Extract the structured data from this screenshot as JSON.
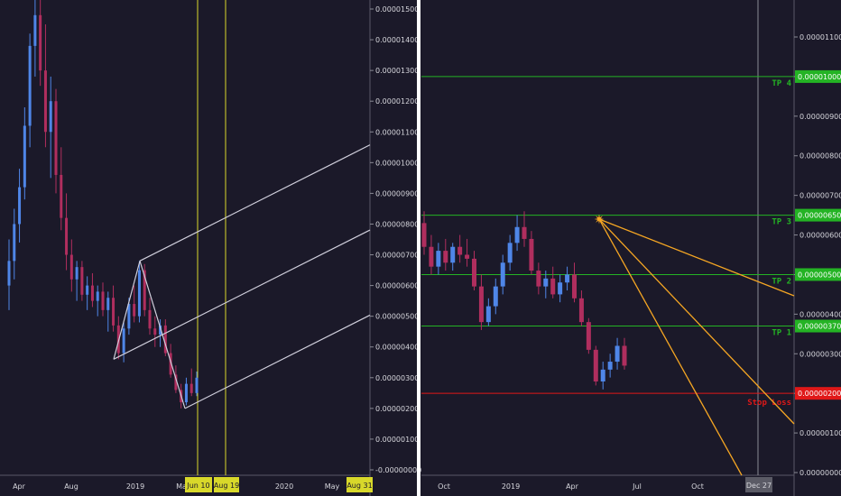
{
  "chart_data": [
    {
      "type": "candlestick",
      "panel": "left",
      "x_ticks": [
        "Apr",
        "Aug",
        "2019",
        "Ma",
        "2020",
        "May"
      ],
      "x_highlight_labels": [
        "Jun 10",
        "Aug 19",
        "Aug 31"
      ],
      "y_ticks": [
        "0.00001500",
        "0.00001400",
        "0.00001300",
        "0.00001200",
        "0.00001100",
        "0.00001000",
        "0.00000900",
        "0.00000800",
        "0.00000700",
        "0.00000600",
        "0.00000500",
        "0.00000400",
        "0.00000300",
        "0.00000200",
        "0.00000100",
        "-0.00000000"
      ],
      "ylim": [
        -1e-07,
        1.56e-05
      ],
      "candles": [
        [
          6e-06,
          7.5e-06,
          5.2e-06,
          6.8e-06
        ],
        [
          6.8e-06,
          8.5e-06,
          6.2e-06,
          8e-06
        ],
        [
          8e-06,
          9.8e-06,
          7.4e-06,
          9.2e-06
        ],
        [
          9.2e-06,
          1.18e-05,
          8.8e-06,
          1.12e-05
        ],
        [
          1.12e-05,
          1.42e-05,
          1.05e-05,
          1.38e-05
        ],
        [
          1.38e-05,
          1.56e-05,
          1.28e-05,
          1.48e-05
        ],
        [
          1.48e-05,
          1.56e-05,
          1.25e-05,
          1.3e-05
        ],
        [
          1.3e-05,
          1.45e-05,
          1.05e-05,
          1.1e-05
        ],
        [
          1.1e-05,
          1.28e-05,
          9.5e-06,
          1.2e-05
        ],
        [
          1.2e-05,
          1.24e-05,
          9e-06,
          9.6e-06
        ],
        [
          9.6e-06,
          1.05e-05,
          7.8e-06,
          8.2e-06
        ],
        [
          8.2e-06,
          9e-06,
          6.5e-06,
          7e-06
        ],
        [
          7e-06,
          7.5e-06,
          5.8e-06,
          6.2e-06
        ],
        [
          6.2e-06,
          6.8e-06,
          5.5e-06,
          6.6e-06
        ],
        [
          6.6e-06,
          6.8e-06,
          5.5e-06,
          5.7e-06
        ],
        [
          5.7e-06,
          6.3e-06,
          5.2e-06,
          6e-06
        ],
        [
          6e-06,
          6.4e-06,
          5.3e-06,
          5.5e-06
        ],
        [
          5.5e-06,
          6e-06,
          5e-06,
          5.8e-06
        ],
        [
          5.8e-06,
          6.1e-06,
          5e-06,
          5.2e-06
        ],
        [
          5.2e-06,
          5.8e-06,
          4.5e-06,
          5.6e-06
        ],
        [
          5.6e-06,
          6e-06,
          4.5e-06,
          4.7e-06
        ],
        [
          4.7e-06,
          5e-06,
          3.6e-06,
          3.8e-06
        ],
        [
          3.8e-06,
          4.8e-06,
          3.5e-06,
          4.6e-06
        ],
        [
          4.6e-06,
          5.6e-06,
          4.4e-06,
          5.4e-06
        ],
        [
          5.4e-06,
          6e-06,
          4.8e-06,
          5e-06
        ],
        [
          5e-06,
          6.8e-06,
          4.8e-06,
          6.5e-06
        ],
        [
          6.5e-06,
          6.7e-06,
          5e-06,
          5.2e-06
        ],
        [
          5.2e-06,
          5.6e-06,
          4.4e-06,
          4.6e-06
        ],
        [
          4.6e-06,
          5e-06,
          4e-06,
          4.4e-06
        ],
        [
          4.4e-06,
          4.9e-06,
          4e-06,
          4.7e-06
        ],
        [
          4.7e-06,
          4.9e-06,
          3.7e-06,
          3.8e-06
        ],
        [
          3.8e-06,
          4.1e-06,
          3e-06,
          3.1e-06
        ],
        [
          3.1e-06,
          3.4e-06,
          2.5e-06,
          2.6e-06
        ],
        [
          2.6e-06,
          2.8e-06,
          2e-06,
          2.2e-06
        ],
        [
          2.2e-06,
          3e-06,
          2.1e-06,
          2.8e-06
        ],
        [
          2.8e-06,
          3.3e-06,
          2.4e-06,
          2.5e-06
        ],
        [
          2.5e-06,
          3.2e-06,
          2.4e-06,
          3e-06
        ]
      ],
      "pitchfork": {
        "pivots": [
          [
            3.6e-06,
            "p0"
          ],
          [
            6.8e-06,
            "p1"
          ],
          [
            2e-06,
            "p2"
          ]
        ]
      }
    },
    {
      "type": "candlestick",
      "panel": "right",
      "x_ticks": [
        "Oct",
        "2019",
        "Apr",
        "Jul",
        "Oct"
      ],
      "x_highlight_label": "Dec 27",
      "y_ticks": [
        "0.00001100",
        "0.00001000",
        "0.00000900",
        "0.00000800",
        "0.00000700",
        "0.00000600",
        "0.00000500",
        "0.00000400",
        "0.00000300",
        "0.00000200",
        "0.00000100",
        "0.00000000"
      ],
      "ylim": [
        0.0,
        1.16e-05
      ],
      "levels": [
        {
          "label": "TP 4",
          "value": "0.00001000",
          "color": "#24b324"
        },
        {
          "label": "TP 3",
          "value": "0.00000650",
          "color": "#24b324"
        },
        {
          "label": "TP 2",
          "value": "0.00000500",
          "color": "#24b324"
        },
        {
          "label": "TP 1",
          "value": "0.00000370",
          "color": "#24b324"
        },
        {
          "label": "Stop Loss",
          "value": "0.00000200",
          "color": "#e01818"
        }
      ],
      "fan_origin_value": 6.4e-06,
      "candles": [
        [
          6.3e-06,
          6.6e-06,
          5.5e-06,
          5.7e-06
        ],
        [
          5.7e-06,
          6e-06,
          5e-06,
          5.2e-06
        ],
        [
          5.2e-06,
          5.8e-06,
          5e-06,
          5.6e-06
        ],
        [
          5.6e-06,
          5.9e-06,
          5.1e-06,
          5.3e-06
        ],
        [
          5.3e-06,
          5.8e-06,
          5.1e-06,
          5.7e-06
        ],
        [
          5.7e-06,
          6e-06,
          5.3e-06,
          5.5e-06
        ],
        [
          5.5e-06,
          5.9e-06,
          5.2e-06,
          5.4e-06
        ],
        [
          5.4e-06,
          5.6e-06,
          4.6e-06,
          4.7e-06
        ],
        [
          4.7e-06,
          5e-06,
          3.6e-06,
          3.8e-06
        ],
        [
          3.8e-06,
          4.4e-06,
          3.7e-06,
          4.2e-06
        ],
        [
          4.2e-06,
          4.9e-06,
          4e-06,
          4.7e-06
        ],
        [
          4.7e-06,
          5.5e-06,
          4.5e-06,
          5.3e-06
        ],
        [
          5.3e-06,
          6e-06,
          5.1e-06,
          5.8e-06
        ],
        [
          5.8e-06,
          6.5e-06,
          5.6e-06,
          6.2e-06
        ],
        [
          6.2e-06,
          6.6e-06,
          5.7e-06,
          5.9e-06
        ],
        [
          5.9e-06,
          6.1e-06,
          5e-06,
          5.1e-06
        ],
        [
          5.1e-06,
          5.3e-06,
          4.5e-06,
          4.7e-06
        ],
        [
          4.7e-06,
          5.1e-06,
          4.4e-06,
          4.9e-06
        ],
        [
          4.9e-06,
          5.2e-06,
          4.4e-06,
          4.5e-06
        ],
        [
          4.5e-06,
          5e-06,
          4.3e-06,
          4.8e-06
        ],
        [
          4.8e-06,
          5.2e-06,
          4.6e-06,
          5e-06
        ],
        [
          5e-06,
          5.3e-06,
          4.3e-06,
          4.4e-06
        ],
        [
          4.4e-06,
          4.6e-06,
          3.7e-06,
          3.8e-06
        ],
        [
          3.8e-06,
          3.9e-06,
          3e-06,
          3.1e-06
        ],
        [
          3.1e-06,
          3.2e-06,
          2.2e-06,
          2.3e-06
        ],
        [
          2.3e-06,
          2.8e-06,
          2.1e-06,
          2.6e-06
        ],
        [
          2.6e-06,
          3e-06,
          2.4e-06,
          2.8e-06
        ],
        [
          2.8e-06,
          3.4e-06,
          2.6e-06,
          3.2e-06
        ],
        [
          3.2e-06,
          3.4e-06,
          2.6e-06,
          2.7e-06
        ]
      ]
    }
  ],
  "colors": {
    "background": "#1b1929",
    "axis_text": "#d6d6dc",
    "up_candle": "#4f86e8",
    "down_candle": "#b02e5e",
    "pitchfork": "#d0cfdc",
    "vertical_marker": "#d8d82a",
    "highlight_label_bg": "#d8d82a",
    "fan": "#f5a623",
    "level_green": "#24b324",
    "level_red": "#e01818",
    "crosshair": "#8a8a95",
    "separator": "#ffffff"
  }
}
